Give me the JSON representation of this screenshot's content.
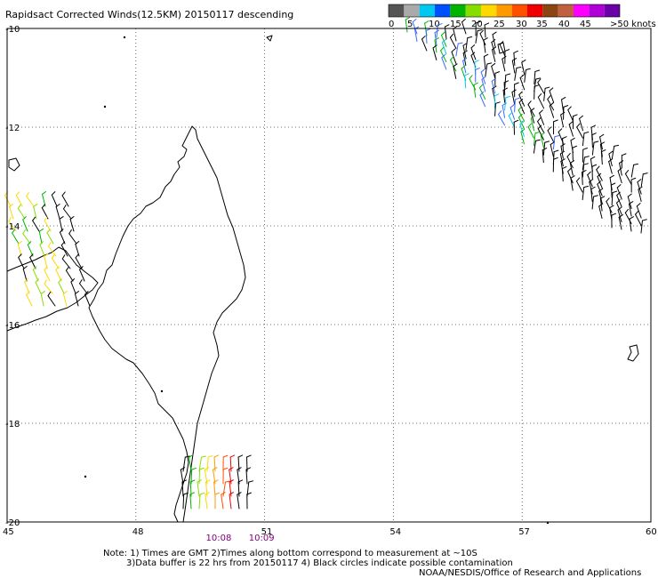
{
  "title": "Rapidsact Corrected Winds(12.5KM) 20150117 descending",
  "legend": {
    "colors": [
      "#555555",
      "#aaaaaa",
      "#00c8f0",
      "#0050ff",
      "#00b400",
      "#88dd00",
      "#ffd800",
      "#ff9900",
      "#ff5000",
      "#ee0000",
      "#8b4513",
      "#c06040",
      "#ff00ff",
      "#b000d8",
      "#6a00a8"
    ],
    "labels": [
      "0",
      "5",
      "10",
      "15",
      "20",
      "25",
      "30",
      "35",
      "40",
      "45",
      ">50 knots"
    ]
  },
  "map": {
    "lon_range": [
      45,
      60
    ],
    "lat_range": [
      -20,
      -10
    ],
    "lon_ticks": [
      "45",
      "48",
      "51",
      "54",
      "57",
      "60"
    ],
    "lat_ticks": [
      "-10",
      "-12",
      "-14",
      "-16",
      "-18",
      "-20"
    ],
    "time_labels": [
      {
        "text": "10:08",
        "lon": 49.9,
        "color": "#800080"
      },
      {
        "text": "10:09",
        "lon": 50.9,
        "color": "#800080"
      }
    ]
  },
  "notes": [
    "Note: 1) Times are GMT 2)Times along bottom correspond to measurement at ~10S",
    "3)Data buffer is 22 hrs from 20150117 4) Black circles indicate possible contamination",
    "NOAA/NESDIS/Office of Research and Applications"
  ]
}
